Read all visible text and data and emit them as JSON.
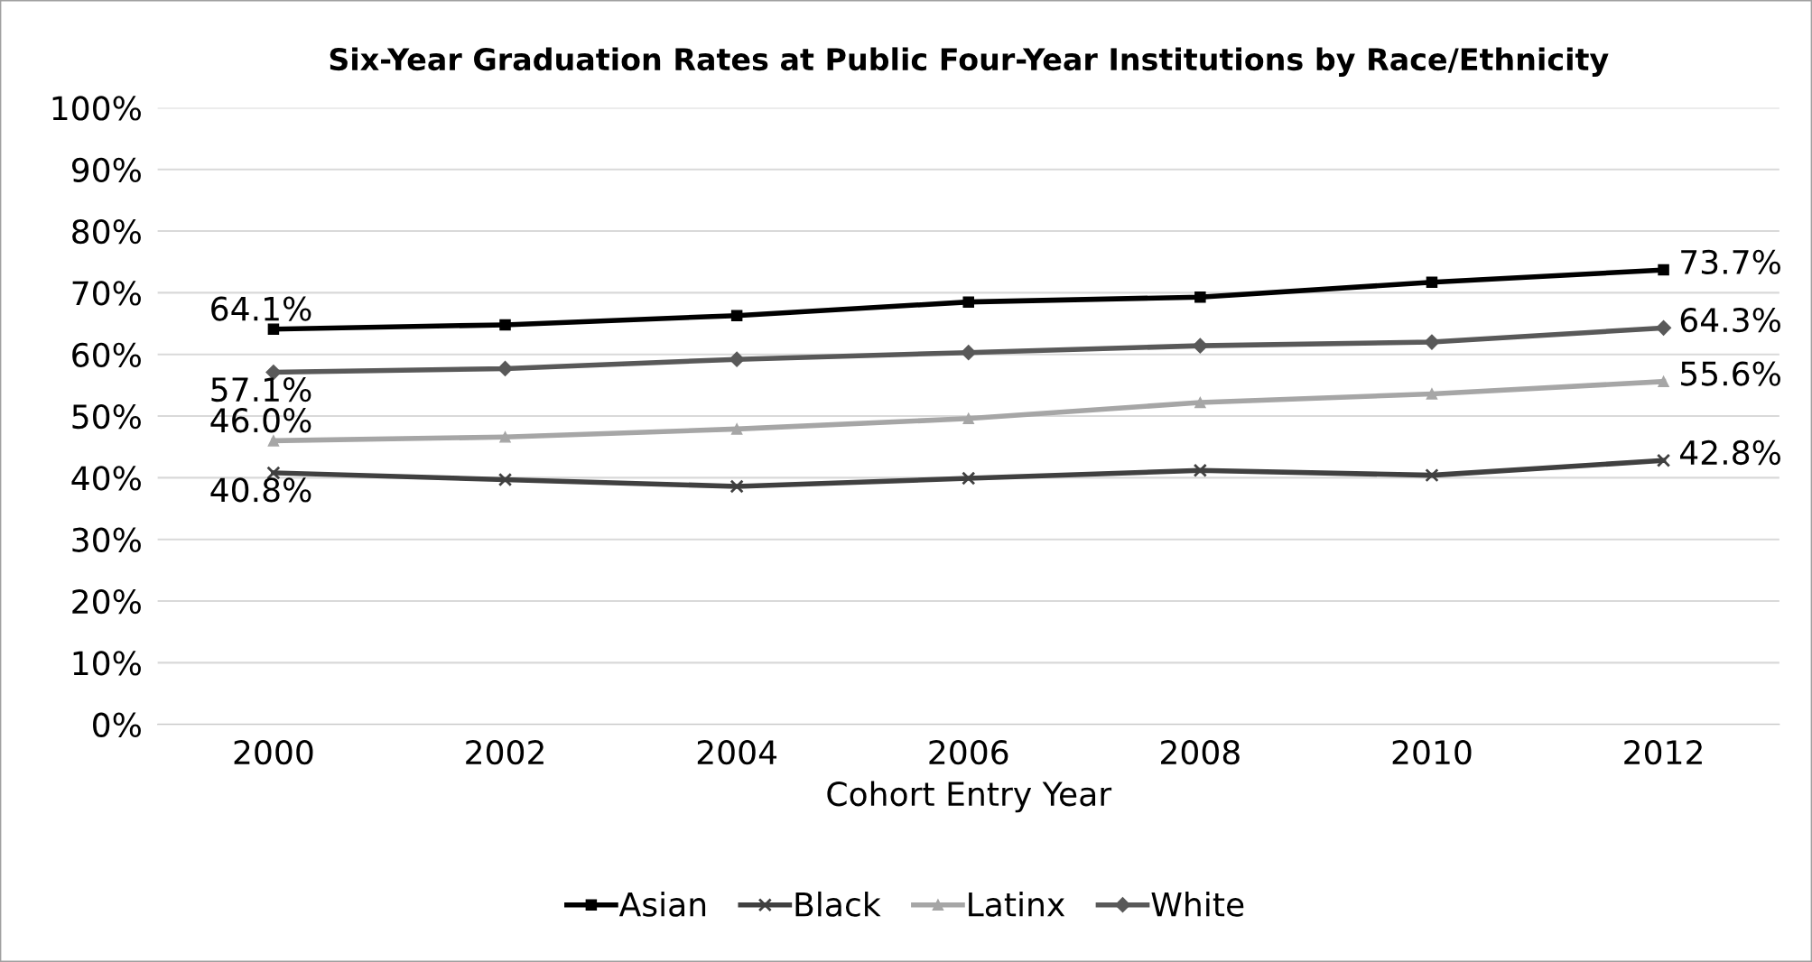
{
  "chart_data": {
    "type": "line",
    "title": "Six-Year Graduation Rates at Public Four-Year Institutions by Race/Ethnicity",
    "xlabel": "Cohort Entry Year",
    "categories": [
      "2000",
      "2002",
      "2004",
      "2006",
      "2008",
      "2010",
      "2012"
    ],
    "ylim": [
      0,
      100
    ],
    "yticks": [
      {
        "value": 0,
        "label": "0%"
      },
      {
        "value": 10,
        "label": "10%"
      },
      {
        "value": 20,
        "label": "20%"
      },
      {
        "value": 30,
        "label": "30%"
      },
      {
        "value": 40,
        "label": "40%"
      },
      {
        "value": 50,
        "label": "50%"
      },
      {
        "value": 60,
        "label": "60%"
      },
      {
        "value": 70,
        "label": "70%"
      },
      {
        "value": 80,
        "label": "80%"
      },
      {
        "value": 90,
        "label": "90%"
      },
      {
        "value": 100,
        "label": "100%"
      }
    ],
    "grid": "y",
    "legend": "bottom",
    "line_style": "solid",
    "series": [
      {
        "name": "Asian",
        "color": "#000000",
        "marker": "square",
        "values": [
          64.1,
          64.8,
          66.3,
          68.5,
          69.3,
          71.7,
          73.7
        ],
        "value_labels": [
          "64.1%",
          null,
          null,
          null,
          null,
          null,
          "73.7%"
        ]
      },
      {
        "name": "Black",
        "color": "#404040",
        "marker": "cross",
        "values": [
          40.8,
          39.7,
          38.6,
          39.9,
          41.2,
          40.4,
          42.8
        ],
        "value_labels": [
          "40.8%",
          null,
          null,
          null,
          null,
          null,
          "42.8%"
        ]
      },
      {
        "name": "Latinx",
        "color": "#a6a6a6",
        "marker": "triangle",
        "values": [
          46.0,
          46.6,
          47.9,
          49.6,
          52.2,
          53.6,
          55.6
        ],
        "value_labels": [
          "46.0%",
          null,
          null,
          null,
          null,
          null,
          "55.6%"
        ]
      },
      {
        "name": "White",
        "color": "#595959",
        "marker": "diamond",
        "values": [
          57.1,
          57.7,
          59.2,
          60.3,
          61.4,
          62.0,
          64.3
        ],
        "value_labels": [
          "57.1%",
          null,
          null,
          null,
          null,
          null,
          "64.3%"
        ]
      }
    ]
  }
}
